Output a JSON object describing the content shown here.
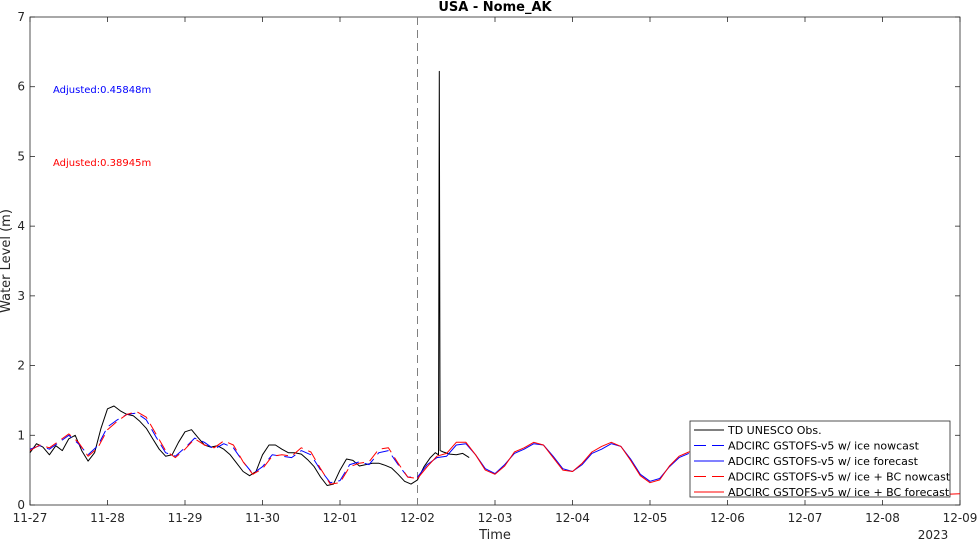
{
  "chart_data": {
    "type": "line",
    "title": "USA - Nome_AK",
    "xlabel": "Time",
    "ylabel": "Water Level (m)",
    "year_label": "2023",
    "xlim": [
      "11-27",
      "12-09"
    ],
    "ylim": [
      0,
      7
    ],
    "x_tick_labels": [
      "11-27",
      "11-28",
      "11-29",
      "11-30",
      "12-01",
      "12-02",
      "12-03",
      "12-04",
      "12-05",
      "12-06",
      "12-07",
      "12-08",
      "12-09"
    ],
    "y_tick_labels": [
      "0",
      "1",
      "2",
      "3",
      "4",
      "5",
      "6",
      "7"
    ],
    "grid": false,
    "legend_position": "bottom-right",
    "vertical_marker": "12-02",
    "annotations": [
      {
        "text": "Adjusted:0.45848m",
        "color": "#0000ff"
      },
      {
        "text": "Adjusted:0.38945m",
        "color": "#ff0000"
      }
    ],
    "series": [
      {
        "name": "TD UNESCO Obs.",
        "color": "#000000",
        "dash": "solid",
        "points": [
          [
            "11-27 00:00",
            0.75
          ],
          [
            "11-27 02:00",
            0.88
          ],
          [
            "11-27 04:00",
            0.83
          ],
          [
            "11-27 06:00",
            0.72
          ],
          [
            "11-27 08:00",
            0.85
          ],
          [
            "11-27 10:00",
            0.78
          ],
          [
            "11-27 12:00",
            0.95
          ],
          [
            "11-27 14:00",
            1.0
          ],
          [
            "11-27 16:00",
            0.78
          ],
          [
            "11-27 18:00",
            0.63
          ],
          [
            "11-27 20:00",
            0.75
          ],
          [
            "11-27 22:00",
            1.1
          ],
          [
            "11-28 00:00",
            1.38
          ],
          [
            "11-28 02:00",
            1.42
          ],
          [
            "11-28 04:00",
            1.35
          ],
          [
            "11-28 06:00",
            1.3
          ],
          [
            "11-28 08:00",
            1.28
          ],
          [
            "11-28 10:00",
            1.2
          ],
          [
            "11-28 12:00",
            1.1
          ],
          [
            "11-28 14:00",
            0.95
          ],
          [
            "11-28 16:00",
            0.8
          ],
          [
            "11-28 18:00",
            0.7
          ],
          [
            "11-28 20:00",
            0.72
          ],
          [
            "11-28 22:00",
            0.9
          ],
          [
            "11-29 00:00",
            1.05
          ],
          [
            "11-29 02:00",
            1.08
          ],
          [
            "11-29 04:00",
            0.97
          ],
          [
            "11-29 06:00",
            0.86
          ],
          [
            "11-29 08:00",
            0.83
          ],
          [
            "11-29 10:00",
            0.85
          ],
          [
            "11-29 12:00",
            0.8
          ],
          [
            "11-29 14:00",
            0.72
          ],
          [
            "11-29 16:00",
            0.6
          ],
          [
            "11-29 18:00",
            0.48
          ],
          [
            "11-29 20:00",
            0.42
          ],
          [
            "11-29 22:00",
            0.48
          ],
          [
            "11-30 00:00",
            0.72
          ],
          [
            "11-30 02:00",
            0.86
          ],
          [
            "11-30 04:00",
            0.86
          ],
          [
            "11-30 06:00",
            0.8
          ],
          [
            "11-30 08:00",
            0.75
          ],
          [
            "11-30 10:00",
            0.75
          ],
          [
            "11-30 12:00",
            0.73
          ],
          [
            "11-30 14:00",
            0.65
          ],
          [
            "11-30 16:00",
            0.55
          ],
          [
            "11-30 18:00",
            0.4
          ],
          [
            "11-30 20:00",
            0.28
          ],
          [
            "11-30 22:00",
            0.3
          ],
          [
            "12-01 00:00",
            0.5
          ],
          [
            "12-01 02:00",
            0.66
          ],
          [
            "12-01 04:00",
            0.64
          ],
          [
            "12-01 06:00",
            0.56
          ],
          [
            "12-01 08:00",
            0.58
          ],
          [
            "12-01 10:00",
            0.6
          ],
          [
            "12-01 12:00",
            0.6
          ],
          [
            "12-01 14:00",
            0.57
          ],
          [
            "12-01 16:00",
            0.53
          ],
          [
            "12-01 18:00",
            0.44
          ],
          [
            "12-01 20:00",
            0.34
          ],
          [
            "12-01 22:00",
            0.3
          ],
          [
            "12-02 00:00",
            0.36
          ],
          [
            "12-02 02:00",
            0.55
          ],
          [
            "12-02 04:00",
            0.68
          ],
          [
            "12-02 05:30",
            0.75
          ],
          [
            "12-02 06:30",
            0.72
          ],
          [
            "12-02 06:45",
            6.22
          ],
          [
            "12-02 07:00",
            0.78
          ],
          [
            "12-02 08:00",
            0.76
          ],
          [
            "12-02 10:00",
            0.73
          ],
          [
            "12-02 12:00",
            0.72
          ],
          [
            "12-02 14:00",
            0.74
          ],
          [
            "12-02 16:00",
            0.68
          ]
        ]
      },
      {
        "name": "ADCIRC GSTOFS-v5 w/ ice nowcast",
        "color": "#0000ff",
        "dash": "12,6",
        "points": [
          [
            "11-27 00:00",
            0.8
          ],
          [
            "11-27 03:00",
            0.85
          ],
          [
            "11-27 06:00",
            0.8
          ],
          [
            "11-27 09:00",
            0.9
          ],
          [
            "11-27 12:00",
            1.0
          ],
          [
            "11-27 15:00",
            0.88
          ],
          [
            "11-27 18:00",
            0.72
          ],
          [
            "11-27 21:00",
            0.85
          ],
          [
            "11-28 00:00",
            1.12
          ],
          [
            "11-28 03:00",
            1.22
          ],
          [
            "11-28 06:00",
            1.3
          ],
          [
            "11-28 09:00",
            1.32
          ],
          [
            "11-28 12:00",
            1.22
          ],
          [
            "11-28 15:00",
            0.98
          ],
          [
            "11-28 18:00",
            0.75
          ],
          [
            "11-28 21:00",
            0.7
          ],
          [
            "11-29 00:00",
            0.82
          ],
          [
            "11-29 03:00",
            0.96
          ],
          [
            "11-29 06:00",
            0.9
          ],
          [
            "11-29 09:00",
            0.8
          ],
          [
            "11-29 12:00",
            0.88
          ],
          [
            "11-29 15:00",
            0.82
          ],
          [
            "11-29 18:00",
            0.62
          ],
          [
            "11-29 21:00",
            0.45
          ],
          [
            "11-30 00:00",
            0.55
          ],
          [
            "11-30 03:00",
            0.72
          ],
          [
            "11-30 06:00",
            0.7
          ],
          [
            "11-30 09:00",
            0.68
          ],
          [
            "11-30 12:00",
            0.78
          ],
          [
            "11-30 15:00",
            0.72
          ],
          [
            "11-30 18:00",
            0.5
          ],
          [
            "11-30 21:00",
            0.32
          ],
          [
            "12-01 00:00",
            0.35
          ],
          [
            "12-01 03:00",
            0.58
          ],
          [
            "12-01 06:00",
            0.62
          ],
          [
            "12-01 09:00",
            0.58
          ],
          [
            "12-01 12:00",
            0.75
          ],
          [
            "12-01 15:00",
            0.78
          ],
          [
            "12-01 18:00",
            0.58
          ],
          [
            "12-01 21:00",
            0.4
          ],
          [
            "12-02 00:00",
            0.4
          ]
        ]
      },
      {
        "name": "ADCIRC GSTOFS-v5 w/ ice forecast",
        "color": "#0000ff",
        "dash": "solid",
        "points": [
          [
            "12-02 00:00",
            0.4
          ],
          [
            "12-02 03:00",
            0.58
          ],
          [
            "12-02 06:00",
            0.68
          ],
          [
            "12-02 09:00",
            0.7
          ],
          [
            "12-02 12:00",
            0.86
          ],
          [
            "12-02 15:00",
            0.88
          ],
          [
            "12-02 18:00",
            0.72
          ],
          [
            "12-02 21:00",
            0.52
          ],
          [
            "12-03 00:00",
            0.45
          ],
          [
            "12-03 03:00",
            0.58
          ],
          [
            "12-03 06:00",
            0.74
          ],
          [
            "12-03 09:00",
            0.8
          ],
          [
            "12-03 12:00",
            0.88
          ],
          [
            "12-03 15:00",
            0.86
          ],
          [
            "12-03 18:00",
            0.7
          ],
          [
            "12-03 21:00",
            0.52
          ],
          [
            "12-04 00:00",
            0.48
          ],
          [
            "12-04 03:00",
            0.58
          ],
          [
            "12-04 06:00",
            0.74
          ],
          [
            "12-04 09:00",
            0.8
          ],
          [
            "12-04 12:00",
            0.88
          ],
          [
            "12-04 15:00",
            0.84
          ],
          [
            "12-04 18:00",
            0.66
          ],
          [
            "12-04 21:00",
            0.44
          ],
          [
            "12-05 00:00",
            0.34
          ],
          [
            "12-05 03:00",
            0.38
          ],
          [
            "12-05 06:00",
            0.55
          ],
          [
            "12-05 09:00",
            0.68
          ],
          [
            "12-05 12:00",
            0.74
          ]
        ]
      },
      {
        "name": "ADCIRC GSTOFS-v5 w/ ice + BC nowcast",
        "color": "#ff0000",
        "dash": "12,6",
        "points": [
          [
            "11-27 00:00",
            0.78
          ],
          [
            "11-27 03:00",
            0.86
          ],
          [
            "11-27 06:00",
            0.82
          ],
          [
            "11-27 09:00",
            0.92
          ],
          [
            "11-27 12:00",
            1.02
          ],
          [
            "11-27 15:00",
            0.9
          ],
          [
            "11-27 18:00",
            0.7
          ],
          [
            "11-27 21:00",
            0.82
          ],
          [
            "11-28 00:00",
            1.08
          ],
          [
            "11-28 03:00",
            1.2
          ],
          [
            "11-28 06:00",
            1.3
          ],
          [
            "11-28 09:00",
            1.34
          ],
          [
            "11-28 12:00",
            1.26
          ],
          [
            "11-28 15:00",
            1.02
          ],
          [
            "11-28 18:00",
            0.78
          ],
          [
            "11-28 21:00",
            0.68
          ],
          [
            "11-29 00:00",
            0.8
          ],
          [
            "11-29 03:00",
            0.95
          ],
          [
            "11-29 06:00",
            0.86
          ],
          [
            "11-29 09:00",
            0.82
          ],
          [
            "11-29 12:00",
            0.92
          ],
          [
            "11-29 15:00",
            0.86
          ],
          [
            "11-29 18:00",
            0.62
          ],
          [
            "11-29 21:00",
            0.44
          ],
          [
            "11-30 00:00",
            0.52
          ],
          [
            "11-30 03:00",
            0.7
          ],
          [
            "11-30 06:00",
            0.72
          ],
          [
            "11-30 09:00",
            0.7
          ],
          [
            "11-30 12:00",
            0.82
          ],
          [
            "11-30 15:00",
            0.76
          ],
          [
            "11-30 18:00",
            0.52
          ],
          [
            "11-30 21:00",
            0.3
          ],
          [
            "12-01 00:00",
            0.32
          ],
          [
            "12-01 03:00",
            0.55
          ],
          [
            "12-01 06:00",
            0.6
          ],
          [
            "12-01 09:00",
            0.62
          ],
          [
            "12-01 12:00",
            0.8
          ],
          [
            "12-01 15:00",
            0.82
          ],
          [
            "12-01 18:00",
            0.6
          ],
          [
            "12-01 21:00",
            0.4
          ],
          [
            "12-02 00:00",
            0.38
          ]
        ]
      },
      {
        "name": "ADCIRC GSTOFS-v5 w/ ice + BC forecast",
        "color": "#ff0000",
        "dash": "solid",
        "points": [
          [
            "12-02 00:00",
            0.38
          ],
          [
            "12-02 03:00",
            0.55
          ],
          [
            "12-02 06:00",
            0.7
          ],
          [
            "12-02 09:00",
            0.74
          ],
          [
            "12-02 12:00",
            0.9
          ],
          [
            "12-02 15:00",
            0.9
          ],
          [
            "12-02 18:00",
            0.72
          ],
          [
            "12-02 21:00",
            0.5
          ],
          [
            "12-03 00:00",
            0.44
          ],
          [
            "12-03 03:00",
            0.56
          ],
          [
            "12-03 06:00",
            0.76
          ],
          [
            "12-03 09:00",
            0.82
          ],
          [
            "12-03 12:00",
            0.9
          ],
          [
            "12-03 15:00",
            0.86
          ],
          [
            "12-03 18:00",
            0.68
          ],
          [
            "12-03 21:00",
            0.5
          ],
          [
            "12-04 00:00",
            0.48
          ],
          [
            "12-04 03:00",
            0.6
          ],
          [
            "12-04 06:00",
            0.76
          ],
          [
            "12-04 09:00",
            0.84
          ],
          [
            "12-04 12:00",
            0.9
          ],
          [
            "12-04 15:00",
            0.84
          ],
          [
            "12-04 18:00",
            0.64
          ],
          [
            "12-04 21:00",
            0.42
          ],
          [
            "12-05 00:00",
            0.32
          ],
          [
            "12-05 03:00",
            0.36
          ],
          [
            "12-05 06:00",
            0.56
          ],
          [
            "12-05 09:00",
            0.7
          ],
          [
            "12-05 12:00",
            0.76
          ],
          [
            "12-05 18:00",
            0.8
          ],
          [
            "12-06 00:00",
            0.6
          ],
          [
            "12-06 12:00",
            0.55
          ],
          [
            "12-07 00:00",
            0.4
          ],
          [
            "12-07 12:00",
            0.3
          ],
          [
            "12-08 00:00",
            0.2
          ],
          [
            "12-08 12:00",
            0.14
          ],
          [
            "12-09 00:00",
            0.16
          ]
        ]
      }
    ]
  }
}
